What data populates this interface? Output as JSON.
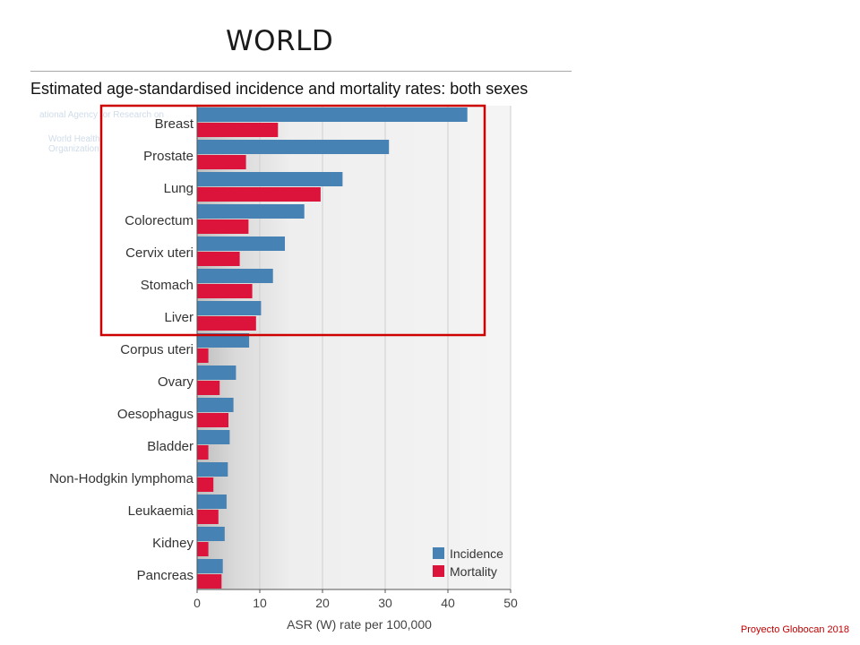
{
  "slide": {
    "title": "WORLD",
    "footer": "Proyecto Globocan 2018"
  },
  "watermark": {
    "line1": "ational Agency for Research on",
    "line2": "World Health",
    "line3": "Organization"
  },
  "colors": {
    "incidence": "#4682b4",
    "mortality": "#dc143c",
    "highlight": "#cc0000"
  },
  "chart_data": {
    "type": "bar",
    "orientation": "horizontal",
    "title": "Estimated age-standardised incidence and mortality rates: both sexes",
    "xlabel": "ASR (W) rate per 100,000",
    "ylabel": "",
    "xlim": [
      0,
      50
    ],
    "xticks": [
      0,
      10,
      20,
      30,
      40,
      50
    ],
    "grid": true,
    "legend_position": "bottom-right",
    "categories": [
      "Breast",
      "Prostate",
      "Lung",
      "Colorectum",
      "Cervix uteri",
      "Stomach",
      "Liver",
      "Corpus uteri",
      "Ovary",
      "Oesophagus",
      "Bladder",
      "Non-Hodgkin lymphoma",
      "Leukaemia",
      "Kidney",
      "Pancreas"
    ],
    "series": [
      {
        "name": "Incidence",
        "color": "#4682b4",
        "values": [
          43.1,
          30.6,
          23.2,
          17.1,
          14.0,
          12.1,
          10.2,
          8.3,
          6.2,
          5.8,
          5.2,
          4.9,
          4.7,
          4.4,
          4.1
        ]
      },
      {
        "name": "Mortality",
        "color": "#dc143c",
        "values": [
          12.9,
          7.8,
          19.7,
          8.2,
          6.8,
          8.8,
          9.4,
          1.8,
          3.6,
          5.0,
          1.8,
          2.6,
          3.4,
          1.8,
          3.9
        ]
      }
    ],
    "highlight": {
      "first_category": "Breast",
      "last_category": "Liver",
      "color": "#cc0000"
    }
  }
}
